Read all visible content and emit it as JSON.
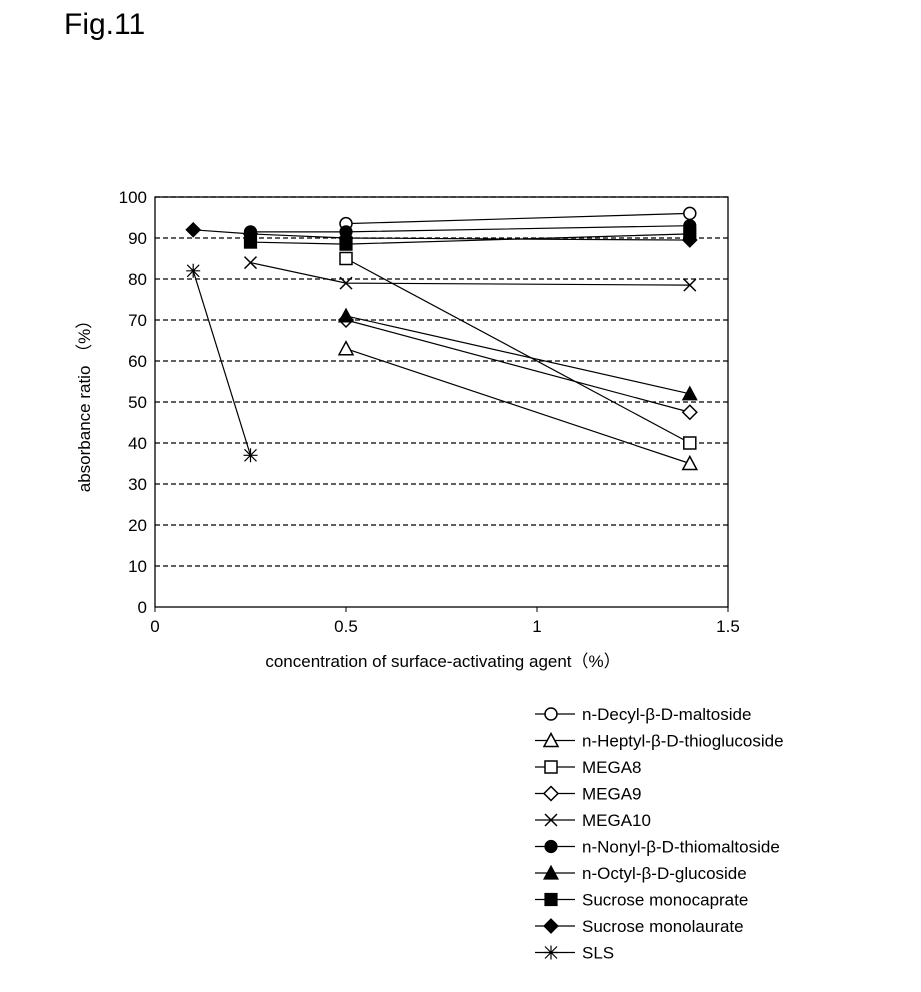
{
  "figure_label": "Fig.11",
  "chart_data": {
    "type": "line",
    "title": "",
    "xlabel": "concentration of surface-activating agent（%）",
    "ylabel": "absorbance ratio （%）",
    "xlim": [
      0,
      1.5
    ],
    "ylim": [
      0,
      100
    ],
    "xticks": [
      "0",
      "0.5",
      "1",
      "1.5"
    ],
    "xtick_values": [
      0,
      0.5,
      1,
      1.5
    ],
    "yticks": [
      "0",
      "10",
      "20",
      "30",
      "40",
      "50",
      "60",
      "70",
      "80",
      "90",
      "100"
    ],
    "ytick_values": [
      0,
      10,
      20,
      30,
      40,
      50,
      60,
      70,
      80,
      90,
      100
    ],
    "grid": "horizontal dashed",
    "legend_position": "bottom-right, below chart",
    "series": [
      {
        "name": "n-Decyl-β-D-maltoside",
        "marker": "circle-open",
        "x": [
          0.5,
          1.4
        ],
        "y": [
          93.5,
          96
        ]
      },
      {
        "name": "n-Heptyl-β-D-thioglucoside",
        "marker": "triangle-open",
        "x": [
          0.5,
          1.4
        ],
        "y": [
          63,
          35
        ]
      },
      {
        "name": "MEGA8",
        "marker": "square-open",
        "x": [
          0.5,
          1.4
        ],
        "y": [
          85,
          40
        ]
      },
      {
        "name": "MEGA9",
        "marker": "diamond-open",
        "x": [
          0.5,
          1.4
        ],
        "y": [
          70,
          47.5
        ]
      },
      {
        "name": "MEGA10",
        "marker": "x",
        "x": [
          0.25,
          0.5,
          1.4
        ],
        "y": [
          84,
          79,
          78.5
        ]
      },
      {
        "name": "n-Nonyl-β-D-thiomaltoside",
        "marker": "circle-filled",
        "x": [
          0.25,
          0.5,
          1.4
        ],
        "y": [
          91.5,
          91.5,
          93
        ]
      },
      {
        "name": "n-Octyl-β-D-glucoside",
        "marker": "triangle-filled",
        "x": [
          0.5,
          1.4
        ],
        "y": [
          71,
          52
        ]
      },
      {
        "name": "Sucrose monocaprate",
        "marker": "square-filled",
        "x": [
          0.25,
          0.5,
          1.4
        ],
        "y": [
          89,
          88.5,
          91
        ]
      },
      {
        "name": "Sucrose monolaurate",
        "marker": "diamond-filled",
        "x": [
          0.1,
          0.25,
          0.5,
          1.4
        ],
        "y": [
          92,
          91,
          90,
          89.5
        ]
      },
      {
        "name": "SLS",
        "marker": "asterisk",
        "x": [
          0.1,
          0.25
        ],
        "y": [
          82,
          37
        ]
      }
    ]
  }
}
